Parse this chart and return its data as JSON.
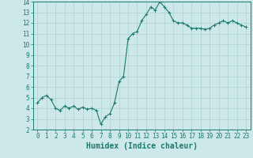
{
  "x": [
    0,
    0.5,
    1,
    1.5,
    2,
    2.5,
    3,
    3.5,
    4,
    4.5,
    5,
    5.5,
    6,
    6.5,
    7,
    7.5,
    8,
    8.5,
    9,
    9.5,
    10,
    10.5,
    11,
    11.5,
    12,
    12.5,
    13,
    13.5,
    14,
    14.5,
    15,
    15.5,
    16,
    16.5,
    17,
    17.5,
    18,
    18.5,
    19,
    19.5,
    20,
    20.5,
    21,
    21.5,
    22,
    22.5,
    23
  ],
  "y": [
    4.5,
    5.0,
    5.2,
    4.8,
    4.0,
    3.8,
    4.2,
    4.0,
    4.2,
    3.9,
    4.1,
    3.9,
    4.0,
    3.8,
    2.5,
    3.2,
    3.5,
    4.5,
    6.5,
    7.0,
    10.5,
    11.0,
    11.2,
    12.2,
    12.8,
    13.5,
    13.2,
    14.0,
    13.5,
    13.0,
    12.2,
    12.0,
    12.0,
    11.8,
    11.5,
    11.5,
    11.5,
    11.4,
    11.5,
    11.8,
    12.0,
    12.2,
    12.0,
    12.2,
    12.0,
    11.8,
    11.6
  ],
  "line_color": "#1a7a6e",
  "marker": "+",
  "markersize": 3,
  "linewidth": 0.8,
  "xlabel": "Humidex (Indice chaleur)",
  "xlabel_fontsize": 7,
  "xlim": [
    -0.5,
    23.5
  ],
  "ylim": [
    2,
    14
  ],
  "xticks": [
    0,
    1,
    2,
    3,
    4,
    5,
    6,
    7,
    8,
    9,
    10,
    11,
    12,
    13,
    14,
    15,
    16,
    17,
    18,
    19,
    20,
    21,
    22,
    23
  ],
  "yticks": [
    2,
    3,
    4,
    5,
    6,
    7,
    8,
    9,
    10,
    11,
    12,
    13,
    14
  ],
  "bg_color": "#cce8e8",
  "grid_color": "#b0d0d0",
  "tick_fontsize": 5.5
}
